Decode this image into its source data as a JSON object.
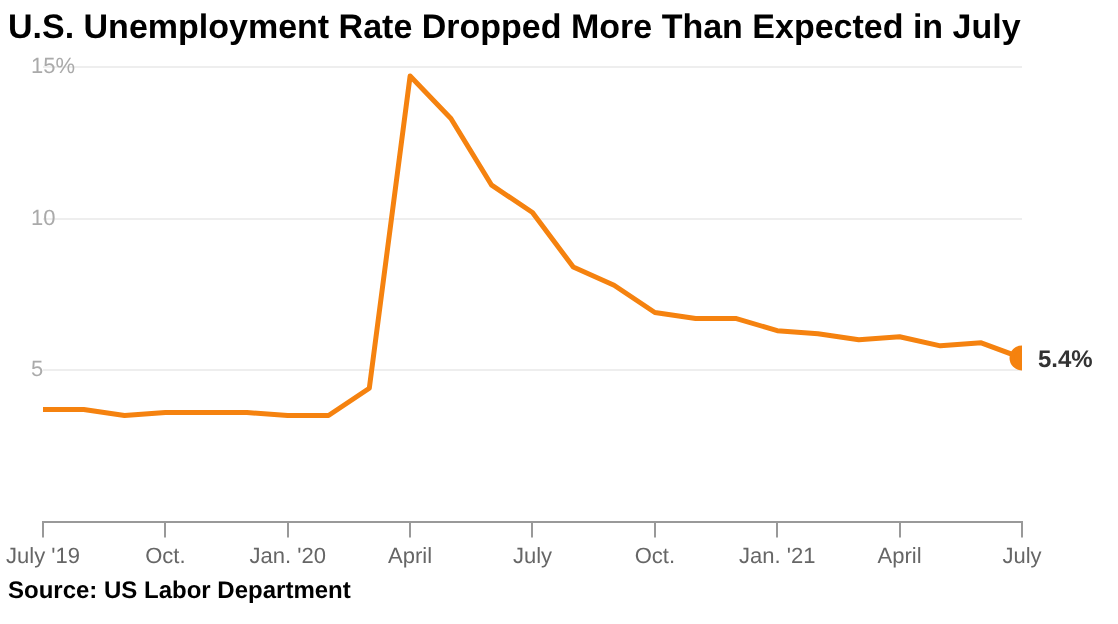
{
  "chart_data": {
    "type": "line",
    "title": "U.S. Unemployment Rate Dropped More Than Expected in July",
    "x": [
      "2019-07",
      "2019-08",
      "2019-09",
      "2019-10",
      "2019-11",
      "2019-12",
      "2020-01",
      "2020-02",
      "2020-03",
      "2020-04",
      "2020-05",
      "2020-06",
      "2020-07",
      "2020-08",
      "2020-09",
      "2020-10",
      "2020-11",
      "2020-12",
      "2021-01",
      "2021-02",
      "2021-03",
      "2021-04",
      "2021-05",
      "2021-06",
      "2021-07"
    ],
    "series": [
      {
        "color": "#f5820f",
        "values": [
          3.7,
          3.7,
          3.5,
          3.6,
          3.6,
          3.6,
          3.5,
          3.5,
          4.4,
          14.7,
          13.3,
          11.1,
          10.2,
          8.4,
          7.8,
          6.9,
          6.7,
          6.7,
          6.3,
          6.2,
          6.0,
          6.1,
          5.8,
          5.9,
          5.4
        ],
        "value_labels": [
          null,
          null,
          null,
          null,
          null,
          null,
          null,
          null,
          null,
          null,
          null,
          null,
          null,
          null,
          null,
          null,
          null,
          null,
          null,
          null,
          null,
          null,
          null,
          null,
          "5.4%"
        ]
      }
    ],
    "xlim": [
      "2019-07",
      "2021-07"
    ],
    "xticks": [
      {
        "value": "2019-07",
        "label": "July '19"
      },
      {
        "value": "2019-10",
        "label": "Oct."
      },
      {
        "value": "2020-01",
        "label": "Jan. '20"
      },
      {
        "value": "2020-04",
        "label": "April"
      },
      {
        "value": "2020-07",
        "label": "July"
      },
      {
        "value": "2020-10",
        "label": "Oct."
      },
      {
        "value": "2021-01",
        "label": "Jan. '21"
      },
      {
        "value": "2021-04",
        "label": "April"
      },
      {
        "value": "2021-07",
        "label": "July"
      }
    ],
    "ylim": [
      0,
      15
    ],
    "yticks": [
      {
        "value": 0,
        "label": null
      },
      {
        "value": 5,
        "label": "5"
      },
      {
        "value": 10,
        "label": "10"
      },
      {
        "value": 15,
        "label": "15%"
      }
    ],
    "grid": "y",
    "legend": false,
    "line_style": "solid",
    "annotations": [
      "Source: US Labor Department"
    ]
  }
}
